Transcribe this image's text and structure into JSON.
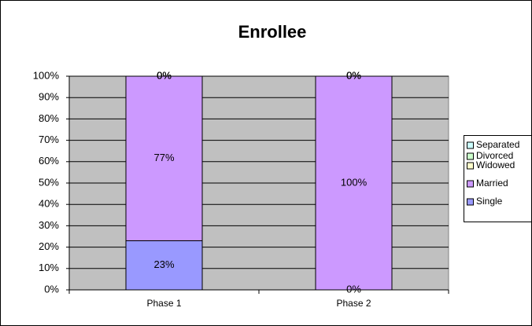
{
  "chart_data": {
    "type": "stacked_bar",
    "title": "Enrollee",
    "categories": [
      "Phase 1",
      "Phase 2"
    ],
    "series": [
      {
        "name": "Single",
        "color": "#9999ff",
        "values": [
          23,
          0
        ],
        "value_labels": [
          "23%",
          "0%"
        ]
      },
      {
        "name": "Married",
        "color": "#cc99ff",
        "values": [
          77,
          100
        ],
        "value_labels": [
          "77%",
          "100%"
        ]
      },
      {
        "name": "Widowed",
        "color": "#ffffcc",
        "values": [
          0,
          0
        ],
        "value_labels": [
          "0%",
          "0%"
        ]
      },
      {
        "name": "Divorced",
        "color": "#ccffcc",
        "values": [
          0,
          0
        ],
        "value_labels": [
          "0%",
          "0%"
        ]
      },
      {
        "name": "Separated",
        "color": "#ccffff",
        "values": [
          0,
          0
        ],
        "value_labels": [
          "0%",
          "0%"
        ]
      }
    ],
    "ylim": [
      0,
      100
    ],
    "yticks": [
      {
        "value": 0,
        "label": "0%"
      },
      {
        "value": 10,
        "label": "10%"
      },
      {
        "value": 20,
        "label": "20%"
      },
      {
        "value": 30,
        "label": "30%"
      },
      {
        "value": 40,
        "label": "40%"
      },
      {
        "value": 50,
        "label": "50%"
      },
      {
        "value": 60,
        "label": "60%"
      },
      {
        "value": 70,
        "label": "70%"
      },
      {
        "value": 80,
        "label": "80%"
      },
      {
        "value": 90,
        "label": "90%"
      },
      {
        "value": 100,
        "label": "100%"
      }
    ],
    "grid": true,
    "legend": "right"
  }
}
